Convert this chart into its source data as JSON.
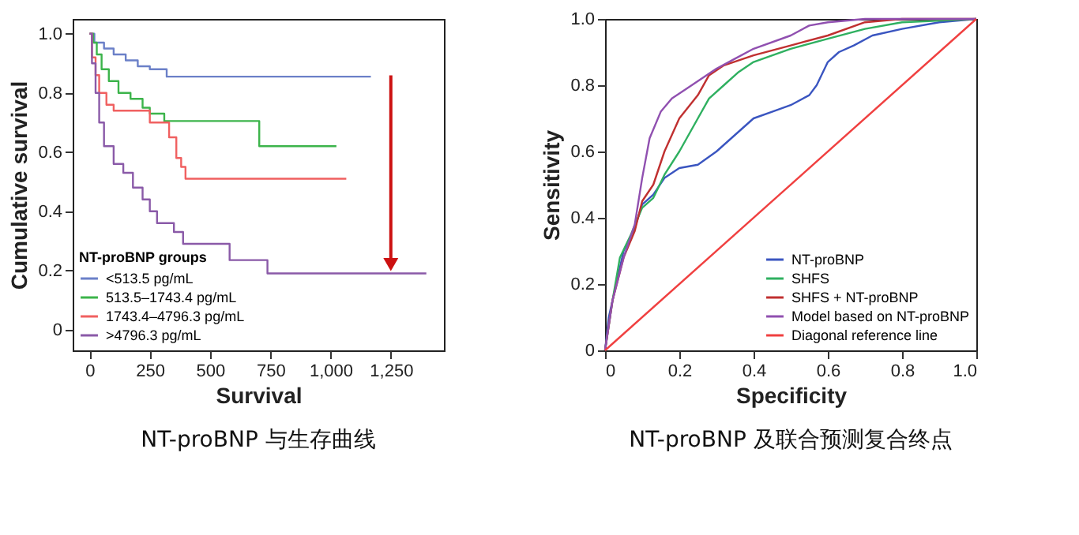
{
  "chart_data": [
    {
      "type": "step",
      "xlabel": "Survival",
      "ylabel": "Cumulative survival",
      "legend_title": "NT-proBNP groups",
      "legend": "bottom left",
      "grid": false,
      "xlim": [
        -70,
        1470
      ],
      "xticks": [
        0,
        {
          "value": 250,
          "label": "250"
        },
        {
          "value": 500,
          "label": "500"
        },
        {
          "value": 750,
          "label": "750"
        },
        {
          "value": 1000,
          "label": "1,000"
        },
        {
          "value": 1250,
          "label": "1,250"
        }
      ],
      "ylim": [
        -0.07,
        1.05
      ],
      "yticks": [
        0,
        0.2,
        0.4,
        0.6,
        0.8,
        {
          "value": 1,
          "label": "1.0"
        }
      ],
      "annotations": [
        "NT-proBNP 与生存曲线"
      ],
      "series": [
        {
          "name": "<513.5 pg/mL",
          "color": "#6b80c8",
          "x": [
            0,
            20,
            60,
            100,
            150,
            200,
            250,
            320,
            1167
          ],
          "values": [
            1,
            0.97,
            0.95,
            0.93,
            0.91,
            0.89,
            0.88,
            0.855,
            0.855
          ]
        },
        {
          "name": "513.5–1743.4 pg/mL",
          "color": "#3cb44b",
          "x": [
            0,
            15,
            30,
            50,
            80,
            120,
            170,
            220,
            250,
            310,
            704,
            1024
          ],
          "values": [
            1,
            0.97,
            0.93,
            0.88,
            0.84,
            0.8,
            0.78,
            0.75,
            0.73,
            0.705,
            0.62,
            0.62
          ]
        },
        {
          "name": "1743.4–4796.3 pg/mL",
          "color": "#f06060",
          "x": [
            0,
            10,
            25,
            40,
            70,
            100,
            250,
            330,
            360,
            380,
            398,
            1065
          ],
          "values": [
            1,
            0.92,
            0.86,
            0.8,
            0.76,
            0.74,
            0.7,
            0.65,
            0.58,
            0.55,
            0.51,
            0.51
          ]
        },
        {
          "name": ">4796.3 pg/mL",
          "color": "#8a5aa8",
          "x": [
            0,
            10,
            25,
            40,
            60,
            100,
            140,
            180,
            220,
            250,
            280,
            350,
            388,
            581,
            738,
            1397
          ],
          "values": [
            1,
            0.9,
            0.8,
            0.7,
            0.62,
            0.56,
            0.53,
            0.48,
            0.44,
            0.4,
            0.36,
            0.33,
            0.29,
            0.235,
            0.19,
            0.19
          ]
        }
      ]
    },
    {
      "type": "line",
      "xlabel": "Specificity",
      "ylabel": "Sensitivity",
      "legend": "bottom right",
      "grid": false,
      "xlim": [
        0,
        1
      ],
      "xticks": [
        0,
        0.2,
        0.4,
        0.6,
        0.8,
        {
          "value": 1,
          "label": "1.0"
        }
      ],
      "ylim": [
        0,
        1
      ],
      "yticks": [
        0,
        0.2,
        0.4,
        0.6,
        0.8,
        {
          "value": 1,
          "label": "1.0"
        }
      ],
      "annotations": [
        "NT-proBNP 及联合预测复合终点"
      ],
      "series": [
        {
          "name": "NT-proBNP",
          "color": "#3a55c0",
          "x": [
            0,
            0.01,
            0.03,
            0.05,
            0.08,
            0.1,
            0.13,
            0.16,
            0.2,
            0.25,
            0.3,
            0.35,
            0.4,
            0.45,
            0.5,
            0.55,
            0.57,
            0.6,
            0.63,
            0.67,
            0.72,
            0.8,
            0.9,
            1
          ],
          "values": [
            0,
            0.1,
            0.2,
            0.3,
            0.37,
            0.44,
            0.47,
            0.52,
            0.55,
            0.56,
            0.6,
            0.65,
            0.7,
            0.72,
            0.74,
            0.77,
            0.8,
            0.87,
            0.9,
            0.92,
            0.95,
            0.97,
            0.99,
            1
          ]
        },
        {
          "name": "SHFS",
          "color": "#2fb060",
          "x": [
            0,
            0.02,
            0.04,
            0.07,
            0.1,
            0.13,
            0.16,
            0.2,
            0.25,
            0.28,
            0.32,
            0.36,
            0.4,
            0.5,
            0.6,
            0.7,
            0.8,
            1
          ],
          "values": [
            0,
            0.15,
            0.28,
            0.35,
            0.43,
            0.46,
            0.53,
            0.6,
            0.7,
            0.76,
            0.8,
            0.84,
            0.87,
            0.91,
            0.94,
            0.97,
            0.99,
            1
          ]
        },
        {
          "name": "SHFS + NT-proBNP",
          "color": "#c03030",
          "x": [
            0,
            0.02,
            0.05,
            0.08,
            0.1,
            0.13,
            0.16,
            0.2,
            0.25,
            0.28,
            0.32,
            0.4,
            0.5,
            0.6,
            0.7,
            0.8,
            1
          ],
          "values": [
            0,
            0.15,
            0.28,
            0.36,
            0.45,
            0.5,
            0.6,
            0.7,
            0.77,
            0.83,
            0.86,
            0.89,
            0.92,
            0.95,
            0.99,
            1,
            1
          ]
        },
        {
          "name": "Model based on NT-proBNP",
          "color": "#9050b0",
          "x": [
            0,
            0.02,
            0.05,
            0.08,
            0.1,
            0.12,
            0.15,
            0.18,
            0.22,
            0.3,
            0.35,
            0.4,
            0.5,
            0.55,
            0.6,
            0.7,
            1
          ],
          "values": [
            0,
            0.15,
            0.28,
            0.38,
            0.52,
            0.64,
            0.72,
            0.76,
            0.79,
            0.85,
            0.88,
            0.91,
            0.95,
            0.98,
            0.99,
            1,
            1
          ]
        },
        {
          "name": "Diagonal reference line",
          "color": "#f04040",
          "x": [
            0,
            1
          ],
          "values": [
            0,
            1
          ]
        }
      ]
    }
  ]
}
